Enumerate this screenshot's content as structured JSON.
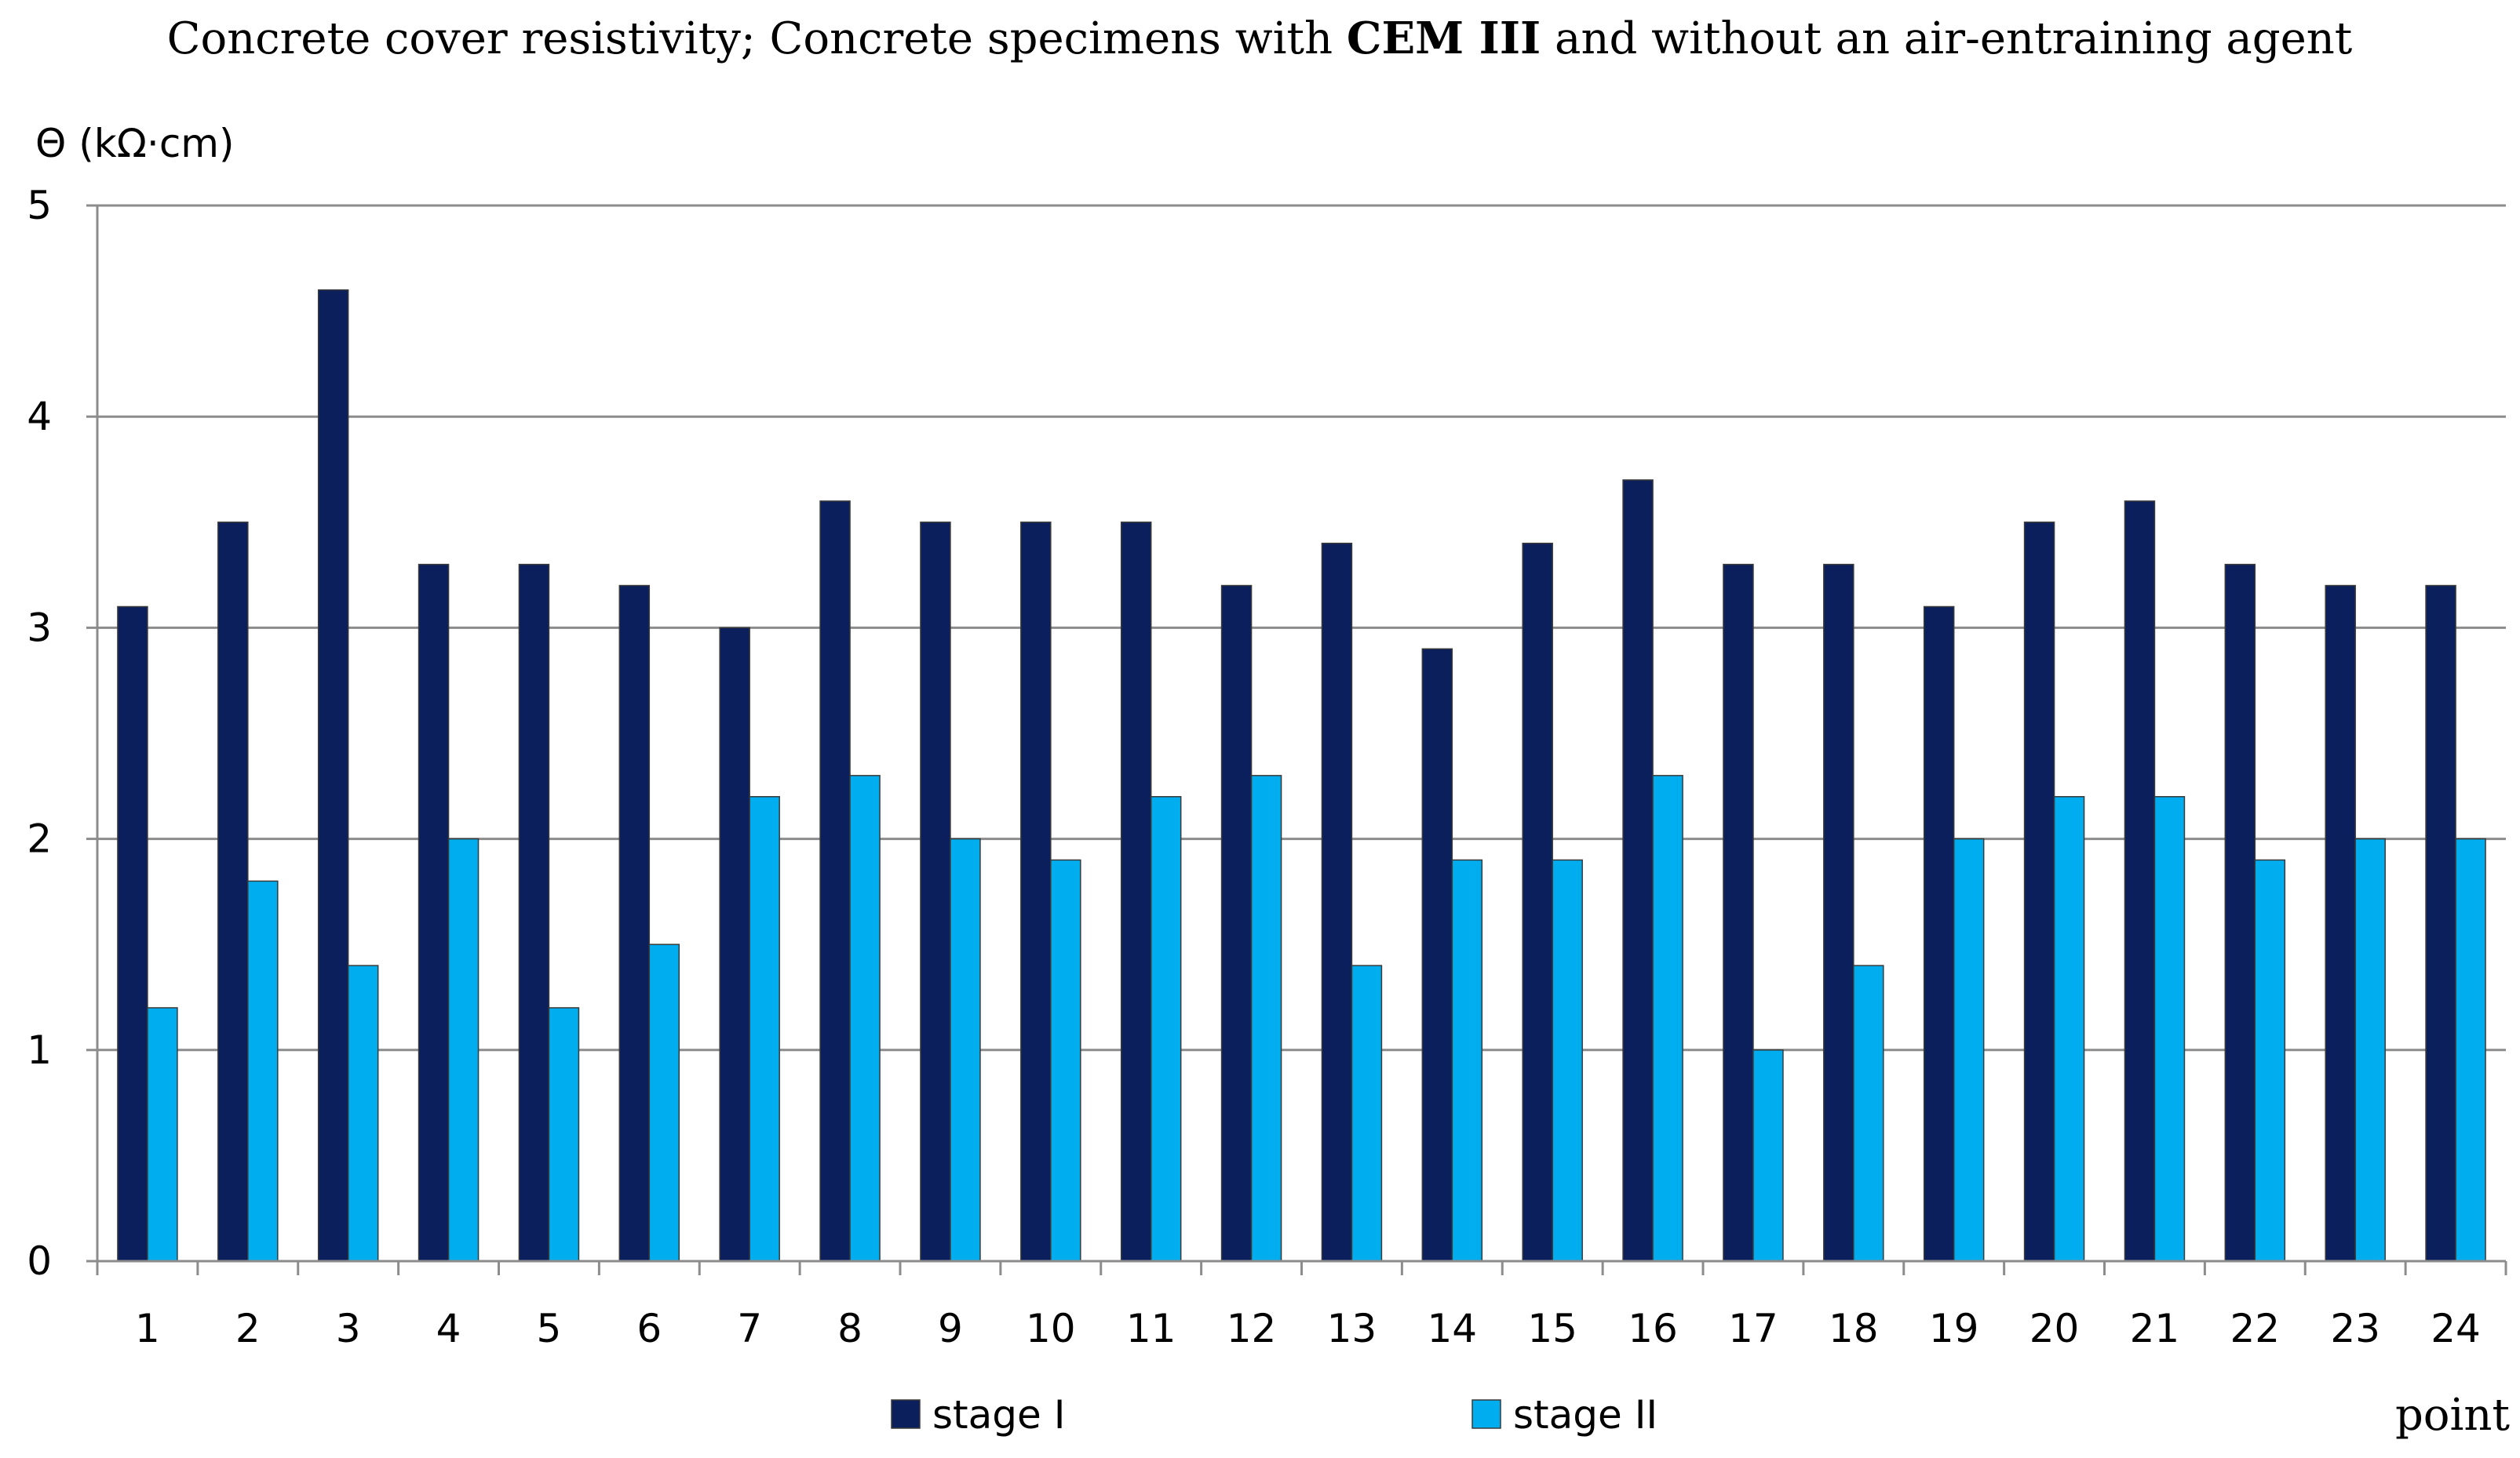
{
  "chart_data": {
    "type": "bar",
    "title": {
      "prefix": "Concrete cover resistivity; Concrete specimens with ",
      "bold": "CEM III",
      "suffix": " and without an air-entraining agent"
    },
    "ylabel": "Θ (kΩ·cm)",
    "xlabel": "point",
    "ylim": [
      0,
      5
    ],
    "yticks": [
      "0",
      "1",
      "2",
      "3",
      "4",
      "5"
    ],
    "grid": true,
    "legend_position": "bottom",
    "categories": [
      "1",
      "2",
      "3",
      "4",
      "5",
      "6",
      "7",
      "8",
      "9",
      "10",
      "11",
      "12",
      "13",
      "14",
      "15",
      "16",
      "17",
      "18",
      "19",
      "20",
      "21",
      "22",
      "23",
      "24"
    ],
    "series": [
      {
        "name": "stage I",
        "color": "#0a1f5c",
        "values": [
          3.1,
          3.5,
          4.6,
          3.3,
          3.3,
          3.2,
          3.0,
          3.6,
          3.5,
          3.5,
          3.5,
          3.2,
          3.4,
          2.9,
          3.4,
          3.7,
          3.3,
          3.3,
          3.1,
          3.5,
          3.6,
          3.3,
          3.2,
          3.2
        ]
      },
      {
        "name": "stage II",
        "color": "#00aeef",
        "values": [
          1.2,
          1.8,
          1.4,
          2.0,
          1.2,
          1.5,
          2.2,
          2.3,
          2.0,
          1.9,
          2.2,
          2.3,
          1.4,
          1.9,
          1.9,
          2.3,
          1.0,
          1.4,
          2.0,
          2.2,
          2.2,
          1.9,
          2.0,
          2.0
        ]
      }
    ]
  }
}
